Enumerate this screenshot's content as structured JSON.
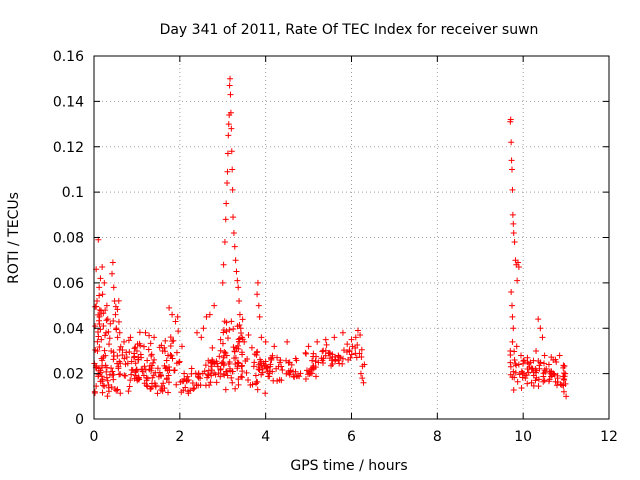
{
  "chart_data": {
    "type": "scatter",
    "title": "Day 341 of 2011, Rate Of TEC Index for receiver suwn",
    "xlabel": "GPS time / hours",
    "ylabel": "ROTI / TECUs",
    "xlim": [
      0,
      12
    ],
    "ylim": [
      0,
      0.16
    ],
    "xticks": [
      0,
      2,
      4,
      6,
      8,
      10,
      12
    ],
    "xtick_labels": [
      "0",
      "2",
      "4",
      "6",
      "8",
      "10",
      "12"
    ],
    "yticks": [
      0,
      0.02,
      0.04,
      0.06,
      0.08,
      0.1,
      0.12,
      0.14,
      0.16
    ],
    "ytick_labels": [
      "0",
      "0.02",
      "0.04",
      "0.06",
      "0.08",
      "0.1",
      "0.12",
      "0.14",
      "0.16"
    ],
    "grid": true,
    "marker": "+",
    "colors": {
      "points": "#ff0000",
      "grid": "#a0a0a0",
      "axes": "#000000"
    },
    "series": [
      {
        "name": "ROTI",
        "points": [
          [
            0.02,
            0.012
          ],
          [
            0.05,
            0.066
          ],
          [
            0.07,
            0.052
          ],
          [
            0.08,
            0.03
          ],
          [
            0.1,
            0.079
          ],
          [
            0.12,
            0.058
          ],
          [
            0.13,
            0.045
          ],
          [
            0.15,
            0.062
          ],
          [
            0.17,
            0.035
          ],
          [
            0.19,
            0.067
          ],
          [
            0.2,
            0.055
          ],
          [
            0.22,
            0.041
          ],
          [
            0.24,
            0.06
          ],
          [
            0.26,
            0.048
          ],
          [
            0.28,
            0.038
          ],
          [
            0.3,
            0.05
          ],
          [
            0.32,
            0.044
          ],
          [
            0.35,
            0.033
          ],
          [
            0.38,
            0.042
          ],
          [
            0.4,
            0.03
          ],
          [
            0.42,
            0.064
          ],
          [
            0.44,
            0.069
          ],
          [
            0.46,
            0.058
          ],
          [
            0.48,
            0.052
          ],
          [
            0.5,
            0.046
          ],
          [
            0.52,
            0.04
          ],
          [
            0.55,
            0.036
          ],
          [
            0.6,
            0.038
          ],
          [
            0.7,
            0.034
          ],
          [
            0.85,
            0.036
          ],
          [
            1.0,
            0.03
          ],
          [
            1.2,
            0.038
          ],
          [
            1.4,
            0.036
          ],
          [
            1.6,
            0.03
          ],
          [
            1.75,
            0.049
          ],
          [
            1.82,
            0.046
          ],
          [
            1.9,
            0.043
          ],
          [
            1.95,
            0.045
          ],
          [
            2.05,
            0.032
          ],
          [
            2.4,
            0.038
          ],
          [
            2.5,
            0.036
          ],
          [
            2.55,
            0.04
          ],
          [
            2.62,
            0.045
          ],
          [
            2.7,
            0.046
          ],
          [
            2.8,
            0.05
          ],
          [
            2.95,
            0.035
          ],
          [
            3.0,
            0.06
          ],
          [
            3.02,
            0.068
          ],
          [
            3.05,
            0.078
          ],
          [
            3.07,
            0.088
          ],
          [
            3.08,
            0.095
          ],
          [
            3.1,
            0.104
          ],
          [
            3.11,
            0.109
          ],
          [
            3.12,
            0.117
          ],
          [
            3.13,
            0.125
          ],
          [
            3.14,
            0.13
          ],
          [
            3.15,
            0.134
          ],
          [
            3.16,
            0.147
          ],
          [
            3.17,
            0.15
          ],
          [
            3.18,
            0.143
          ],
          [
            3.19,
            0.135
          ],
          [
            3.2,
            0.128
          ],
          [
            3.21,
            0.118
          ],
          [
            3.22,
            0.11
          ],
          [
            3.23,
            0.101
          ],
          [
            3.24,
            0.089
          ],
          [
            3.26,
            0.082
          ],
          [
            3.28,
            0.076
          ],
          [
            3.3,
            0.07
          ],
          [
            3.32,
            0.065
          ],
          [
            3.34,
            0.061
          ],
          [
            3.36,
            0.058
          ],
          [
            3.38,
            0.052
          ],
          [
            3.4,
            0.046
          ],
          [
            3.42,
            0.04
          ],
          [
            3.45,
            0.036
          ],
          [
            3.5,
            0.034
          ],
          [
            3.6,
            0.037
          ],
          [
            3.8,
            0.055
          ],
          [
            3.82,
            0.06
          ],
          [
            3.84,
            0.05
          ],
          [
            3.86,
            0.045
          ],
          [
            3.9,
            0.036
          ],
          [
            4.0,
            0.034
          ],
          [
            4.2,
            0.032
          ],
          [
            4.5,
            0.034
          ],
          [
            5.0,
            0.032
          ],
          [
            5.2,
            0.034
          ],
          [
            5.4,
            0.035
          ],
          [
            5.6,
            0.036
          ],
          [
            5.8,
            0.038
          ],
          [
            5.9,
            0.033
          ],
          [
            6.0,
            0.035
          ],
          [
            6.1,
            0.036
          ],
          [
            6.15,
            0.039
          ],
          [
            6.2,
            0.037
          ],
          [
            6.22,
            0.02
          ],
          [
            6.25,
            0.018
          ],
          [
            6.28,
            0.016
          ],
          [
            6.3,
            0.024
          ],
          [
            9.7,
            0.131
          ],
          [
            9.71,
            0.132
          ],
          [
            9.72,
            0.122
          ],
          [
            9.73,
            0.114
          ],
          [
            9.74,
            0.11
          ],
          [
            9.75,
            0.101
          ],
          [
            9.76,
            0.09
          ],
          [
            9.77,
            0.086
          ],
          [
            9.78,
            0.082
          ],
          [
            9.8,
            0.078
          ],
          [
            9.82,
            0.07
          ],
          [
            9.84,
            0.068
          ],
          [
            9.86,
            0.061
          ],
          [
            9.88,
            0.069
          ],
          [
            9.9,
            0.067
          ],
          [
            9.72,
            0.056
          ],
          [
            9.74,
            0.05
          ],
          [
            9.75,
            0.045
          ],
          [
            9.77,
            0.04
          ],
          [
            9.7,
            0.03
          ],
          [
            9.75,
            0.034
          ],
          [
            9.8,
            0.026
          ],
          [
            9.85,
            0.032
          ],
          [
            9.9,
            0.024
          ],
          [
            9.95,
            0.028
          ],
          [
            10.0,
            0.02
          ],
          [
            10.05,
            0.018
          ],
          [
            10.1,
            0.025
          ],
          [
            10.2,
            0.022
          ],
          [
            10.3,
            0.03
          ],
          [
            10.35,
            0.044
          ],
          [
            10.4,
            0.04
          ],
          [
            10.45,
            0.036
          ],
          [
            10.5,
            0.028
          ],
          [
            10.6,
            0.024
          ],
          [
            10.7,
            0.026
          ],
          [
            10.8,
            0.018
          ],
          [
            10.85,
            0.028
          ],
          [
            10.9,
            0.015
          ],
          [
            10.95,
            0.012
          ],
          [
            11.0,
            0.01
          ],
          [
            10.98,
            0.02
          ]
        ],
        "dense_bands": [
          {
            "x_range": [
              0.0,
              0.8
            ],
            "y_range": [
              0.008,
              0.035
            ],
            "count": 70
          },
          {
            "x_range": [
              0.0,
              0.6
            ],
            "y_range": [
              0.03,
              0.06
            ],
            "count": 25
          },
          {
            "x_range": [
              0.8,
              2.0
            ],
            "y_range": [
              0.01,
              0.03
            ],
            "count": 90
          },
          {
            "x_range": [
              0.8,
              2.0
            ],
            "y_range": [
              0.025,
              0.04
            ],
            "count": 30
          },
          {
            "x_range": [
              2.0,
              2.5
            ],
            "y_range": [
              0.008,
              0.025
            ],
            "count": 30
          },
          {
            "x_range": [
              2.5,
              4.0
            ],
            "y_range": [
              0.01,
              0.036
            ],
            "count": 110
          },
          {
            "x_range": [
              3.0,
              3.5
            ],
            "y_range": [
              0.025,
              0.05
            ],
            "count": 25
          },
          {
            "x_range": [
              4.0,
              5.2
            ],
            "y_range": [
              0.014,
              0.03
            ],
            "count": 70
          },
          {
            "x_range": [
              5.2,
              6.3
            ],
            "y_range": [
              0.022,
              0.034
            ],
            "count": 45
          },
          {
            "x_range": [
              9.7,
              10.3
            ],
            "y_range": [
              0.012,
              0.03
            ],
            "count": 40
          },
          {
            "x_range": [
              10.3,
              11.0
            ],
            "y_range": [
              0.01,
              0.03
            ],
            "count": 45
          }
        ]
      }
    ]
  }
}
